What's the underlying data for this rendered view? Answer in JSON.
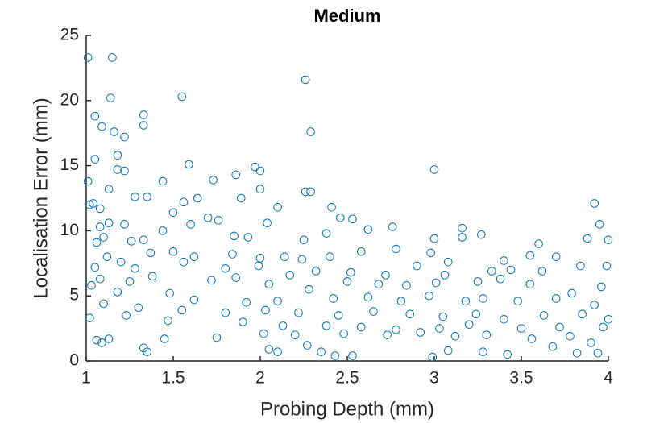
{
  "chart_data": {
    "type": "scatter",
    "title": "Medium",
    "x_label": "Probing Depth (mm)",
    "y_label": "Localisation Error (mm)",
    "xlim": [
      1,
      4
    ],
    "ylim": [
      0,
      25
    ],
    "xticks": [
      1,
      1.5,
      2,
      2.5,
      3,
      3.5,
      4
    ],
    "yticks": [
      0,
      5,
      10,
      15,
      20,
      25
    ],
    "marker": "open-circle",
    "series": [
      {
        "color": "#0072BD",
        "x": [
          1.01,
          1.15,
          2.26,
          1.14,
          1.55,
          1.33,
          1.33,
          1.05,
          1.09,
          1.16,
          1.22,
          2.29,
          1.05,
          1.18,
          1.59,
          1.18,
          1.22,
          1.97,
          2.0,
          3.0,
          1.86,
          1.01,
          1.44,
          1.73,
          1.13,
          1.35,
          1.28,
          1.02,
          1.04,
          1.08,
          1.56,
          1.64,
          2.26,
          2.29,
          2.0,
          1.89,
          2.1,
          2.41,
          2.46,
          2.53,
          1.13,
          1.08,
          1.22,
          1.5,
          1.7,
          1.76,
          1.44,
          1.6,
          1.85,
          1.93,
          2.04,
          2.25,
          2.38,
          2.62,
          2.76,
          3.16,
          3.16,
          3.27,
          3.0,
          3.92,
          3.95,
          4.0,
          3.88,
          3.6,
          1.1,
          1.26,
          1.33,
          1.06,
          1.37,
          1.5,
          1.62,
          1.84,
          2.0,
          2.14,
          2.24,
          2.4,
          2.58,
          2.78,
          2.98,
          3.08,
          3.4,
          3.55,
          3.7,
          1.12,
          1.2,
          1.05,
          1.28,
          1.56,
          1.8,
          1.99,
          2.17,
          2.32,
          2.52,
          2.72,
          2.9,
          3.06,
          3.33,
          3.44,
          3.62,
          3.84,
          3.99,
          1.08,
          1.25,
          1.38,
          1.72,
          1.86,
          2.05,
          2.28,
          2.5,
          2.68,
          2.84,
          3.01,
          3.25,
          3.38,
          3.55,
          3.79,
          3.96,
          1.03,
          1.18,
          1.48,
          1.62,
          1.92,
          2.1,
          2.42,
          2.62,
          2.81,
          2.97,
          3.18,
          3.28,
          3.48,
          3.7,
          3.92,
          1.1,
          1.3,
          1.55,
          1.8,
          2.03,
          2.22,
          2.45,
          2.65,
          2.86,
          3.05,
          3.24,
          3.4,
          3.63,
          3.85,
          4.0,
          1.02,
          1.23,
          1.47,
          1.9,
          2.13,
          2.38,
          2.58,
          2.78,
          3.03,
          3.2,
          3.5,
          3.72,
          3.97,
          1.13,
          1.45,
          1.75,
          2.02,
          2.2,
          2.48,
          2.73,
          2.92,
          3.12,
          3.3,
          3.56,
          3.78,
          3.9,
          1.06,
          1.33,
          1.35,
          2.05,
          2.1,
          2.35,
          2.43,
          2.53,
          2.99,
          3.08,
          3.28,
          3.42,
          3.82,
          3.94,
          3.68,
          2.27,
          1.09
        ],
        "values": [
          23.3,
          23.3,
          21.6,
          20.2,
          20.3,
          18.9,
          18.1,
          18.8,
          18.0,
          17.6,
          17.2,
          17.6,
          15.5,
          15.8,
          15.1,
          14.7,
          14.6,
          14.9,
          14.6,
          14.7,
          14.3,
          13.8,
          13.8,
          13.9,
          13.2,
          12.6,
          12.6,
          12.0,
          12.1,
          11.7,
          12.2,
          12.5,
          13.0,
          13.0,
          13.2,
          12.5,
          11.8,
          11.8,
          11.0,
          10.9,
          10.6,
          10.3,
          10.5,
          11.4,
          11.0,
          10.8,
          10.0,
          10.5,
          9.6,
          9.5,
          10.6,
          9.3,
          9.8,
          10.1,
          10.3,
          10.2,
          9.5,
          9.7,
          9.4,
          12.1,
          10.5,
          9.3,
          9.4,
          9.0,
          9.5,
          9.2,
          9.3,
          9.1,
          8.3,
          8.4,
          8.0,
          8.2,
          7.9,
          8.0,
          7.8,
          8.0,
          8.4,
          8.6,
          8.3,
          7.6,
          7.7,
          8.1,
          8.0,
          8.0,
          7.6,
          7.2,
          7.1,
          7.6,
          7.1,
          7.3,
          6.6,
          6.9,
          6.8,
          6.6,
          7.3,
          6.6,
          6.9,
          7.0,
          6.9,
          7.3,
          7.3,
          6.3,
          6.1,
          6.5,
          6.2,
          6.4,
          5.9,
          5.5,
          6.1,
          5.9,
          5.8,
          6.0,
          6.1,
          6.3,
          5.9,
          5.2,
          5.7,
          5.8,
          5.3,
          5.2,
          4.7,
          4.5,
          4.6,
          4.8,
          4.9,
          4.6,
          5.0,
          4.6,
          4.8,
          4.6,
          4.8,
          4.3,
          4.4,
          4.1,
          3.9,
          3.7,
          3.9,
          3.7,
          3.5,
          3.8,
          3.6,
          3.4,
          3.6,
          3.2,
          3.5,
          3.6,
          3.2,
          3.3,
          3.5,
          3.1,
          3.0,
          2.7,
          2.7,
          2.6,
          2.4,
          2.5,
          2.8,
          2.5,
          2.6,
          2.6,
          1.7,
          1.7,
          1.8,
          2.1,
          2.0,
          2.1,
          2.0,
          2.2,
          1.9,
          2.0,
          1.7,
          1.9,
          1.4,
          1.6,
          1.0,
          0.7,
          0.9,
          0.7,
          0.7,
          0.4,
          0.4,
          0.3,
          0.8,
          0.7,
          0.5,
          0.6,
          0.6,
          1.1,
          1.2,
          1.4
        ]
      }
    ]
  }
}
